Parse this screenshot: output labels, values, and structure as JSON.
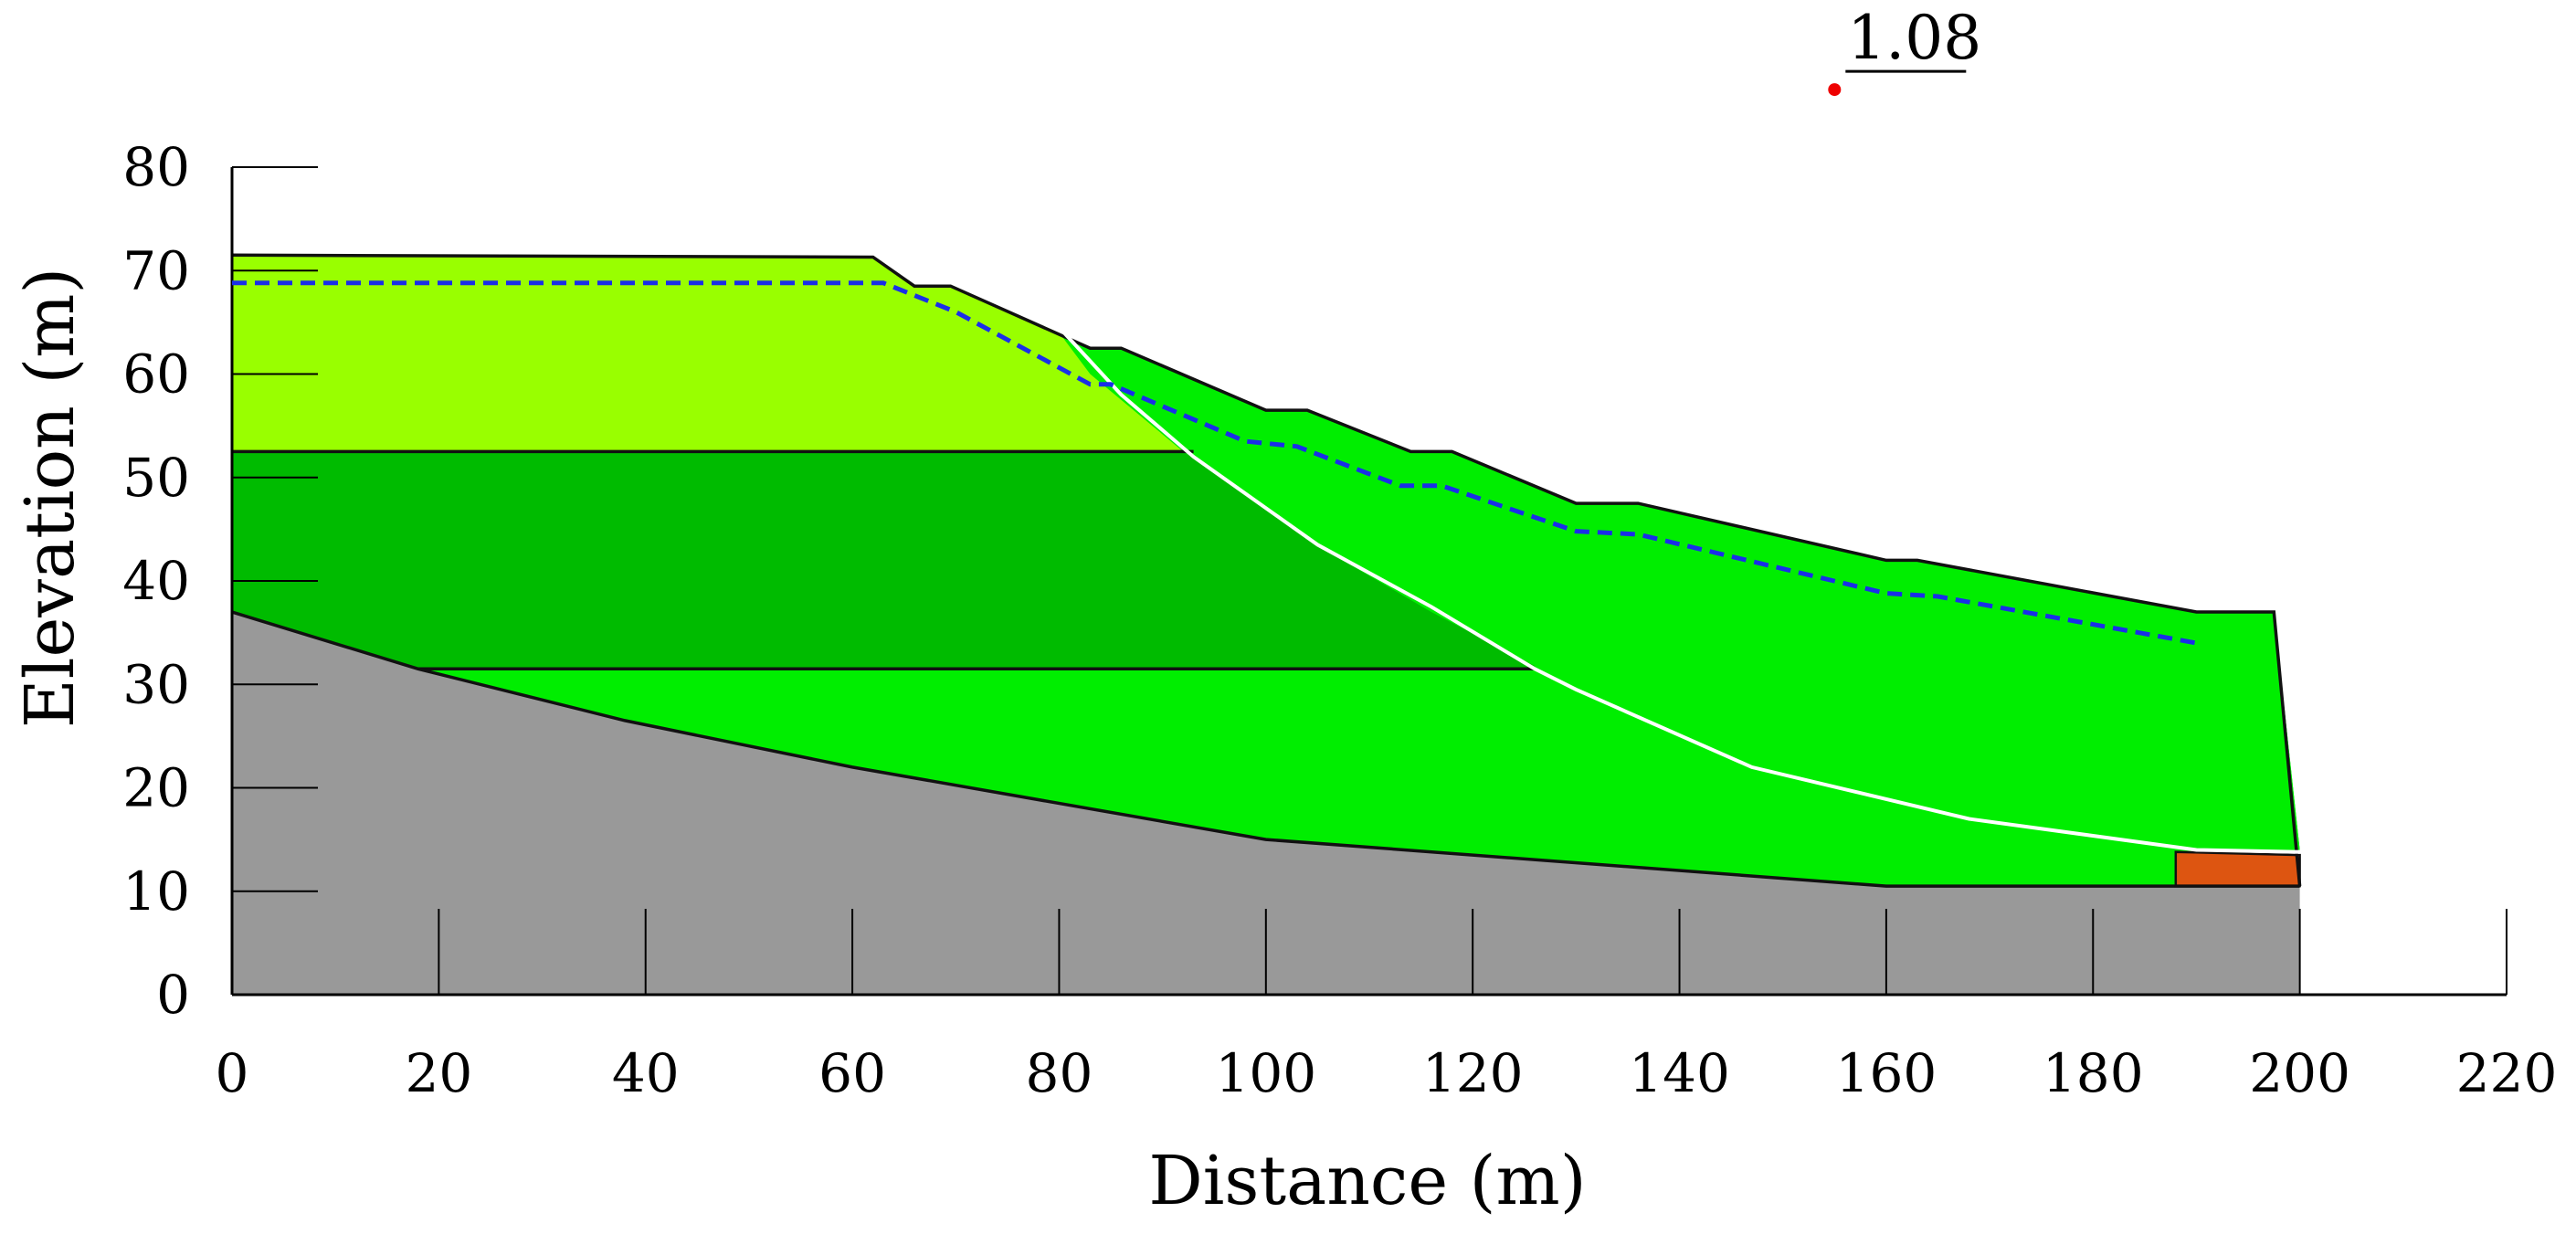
{
  "chart_data": {
    "type": "slope-stability-section",
    "xlabel": "Distance (m)",
    "ylabel": "Elevation (m)",
    "xlim": [
      0,
      220
    ],
    "ylim": [
      0,
      80
    ],
    "x_ticks": [
      0,
      20,
      40,
      60,
      80,
      100,
      120,
      140,
      160,
      180,
      200,
      220
    ],
    "y_ticks": [
      0,
      10,
      20,
      30,
      40,
      50,
      60,
      70,
      80
    ],
    "factor_of_safety": "1.08",
    "slip_center": [
      155,
      87.5
    ],
    "layers": [
      {
        "key": "bedrock",
        "color": "#999999",
        "points": [
          [
            0,
            37
          ],
          [
            18,
            31.5
          ],
          [
            38,
            26.5
          ],
          [
            60,
            22
          ],
          [
            100,
            15
          ],
          [
            160,
            10.5
          ],
          [
            200,
            10.5
          ],
          [
            200,
            0
          ],
          [
            0,
            0
          ]
        ]
      },
      {
        "key": "lower-layer",
        "color": "#00bb00",
        "points": [
          [
            0,
            37
          ],
          [
            18,
            31.5
          ],
          [
            38,
            26.5
          ],
          [
            60,
            22
          ],
          [
            100,
            15
          ],
          [
            160,
            10.5
          ],
          [
            188,
            10.5
          ],
          [
            188,
            13.5
          ],
          [
            200,
            14
          ],
          [
            197.5,
            37
          ],
          [
            190,
            37
          ],
          [
            163,
            42
          ],
          [
            160,
            42
          ],
          [
            136,
            47.5
          ],
          [
            130,
            47.5
          ],
          [
            118,
            52.5
          ],
          [
            114,
            52.5
          ],
          [
            104,
            56.5
          ],
          [
            100,
            56.5
          ],
          [
            86,
            62.5
          ],
          [
            83,
            62.5
          ],
          [
            69.5,
            68.5
          ],
          [
            66,
            68.5
          ],
          [
            62,
            71.3
          ],
          [
            30,
            71.4
          ],
          [
            0,
            71.5
          ]
        ]
      },
      {
        "key": "middle-layer",
        "color": "#00ee00",
        "points": [
          [
            0,
            52.5
          ],
          [
            92,
            52.5
          ],
          [
            92,
            52.8
          ],
          [
            104,
            44
          ],
          [
            116,
            37
          ],
          [
            126,
            31.8
          ],
          [
            126,
            31.5
          ],
          [
            18,
            31.5
          ],
          [
            38,
            26.5
          ],
          [
            60,
            22
          ],
          [
            100,
            15
          ],
          [
            160,
            10.5
          ],
          [
            188,
            10.5
          ],
          [
            188,
            13.5
          ],
          [
            200,
            14
          ],
          [
            197.5,
            37
          ],
          [
            190,
            37
          ],
          [
            163,
            42
          ],
          [
            160,
            42
          ],
          [
            136,
            47.5
          ],
          [
            130,
            47.5
          ],
          [
            118,
            52.5
          ],
          [
            114,
            52.5
          ],
          [
            104,
            56.5
          ],
          [
            100,
            56.5
          ],
          [
            86,
            62.5
          ],
          [
            83,
            62.5
          ],
          [
            69.5,
            68.5
          ],
          [
            66,
            68.5
          ],
          [
            62,
            71.3
          ],
          [
            30,
            71.4
          ],
          [
            0,
            71.5
          ]
        ]
      },
      {
        "key": "upper-layer",
        "color": "#99ff00",
        "points": [
          [
            0,
            71.5
          ],
          [
            30,
            71.4
          ],
          [
            62,
            71.3
          ],
          [
            66,
            68.5
          ],
          [
            69.5,
            68.5
          ],
          [
            80,
            64
          ],
          [
            83,
            60
          ],
          [
            92,
            52.5
          ],
          [
            0,
            52.5
          ]
        ]
      },
      {
        "key": "toe-block",
        "color": "#dd5511",
        "points": [
          [
            188,
            10.5
          ],
          [
            200,
            10.5
          ],
          [
            200,
            13.5
          ],
          [
            188,
            13.8
          ]
        ]
      }
    ],
    "layer_boundaries": [
      [
        [
          0,
          52.5
        ],
        [
          93,
          52.5
        ]
      ],
      [
        [
          18,
          31.5
        ],
        [
          126,
          31.5
        ]
      ]
    ],
    "ground_surface": [
      [
        0,
        71.5
      ],
      [
        30,
        71.4
      ],
      [
        62,
        71.3
      ],
      [
        66,
        68.5
      ],
      [
        69.5,
        68.5
      ],
      [
        83,
        62.5
      ],
      [
        86,
        62.5
      ],
      [
        100,
        56.5
      ],
      [
        104,
        56.5
      ],
      [
        114,
        52.5
      ],
      [
        118,
        52.5
      ],
      [
        130,
        47.5
      ],
      [
        136,
        47.5
      ],
      [
        160,
        42
      ],
      [
        163,
        42
      ],
      [
        190,
        37
      ],
      [
        197.5,
        37
      ],
      [
        200,
        10.5
      ]
    ],
    "water_table": [
      [
        0,
        68.8
      ],
      [
        63,
        68.8
      ],
      [
        70,
        66
      ],
      [
        83,
        59
      ],
      [
        85,
        59
      ],
      [
        98,
        53.5
      ],
      [
        103,
        53
      ],
      [
        113,
        49.2
      ],
      [
        117,
        49.2
      ],
      [
        130,
        44.8
      ],
      [
        136,
        44.5
      ],
      [
        160,
        38.8
      ],
      [
        165,
        38.5
      ],
      [
        190,
        34
      ]
    ],
    "slip_surface": [
      [
        80,
        64.5
      ],
      [
        86,
        58
      ],
      [
        93,
        52
      ],
      [
        105,
        43.5
      ],
      [
        116,
        37.5
      ],
      [
        126,
        31.5
      ],
      [
        130,
        29.5
      ],
      [
        147,
        22
      ],
      [
        168,
        17
      ],
      [
        190,
        14
      ],
      [
        200,
        13.8
      ]
    ]
  }
}
